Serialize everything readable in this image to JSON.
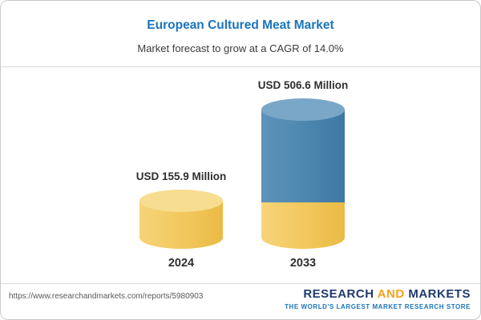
{
  "chart_data": {
    "type": "bar",
    "style": "3d-cylinder",
    "title": "European Cultured Meat Market",
    "subtitle": "Market forecast to grow at a CAGR of 14.0%",
    "categories": [
      "2024",
      "2033"
    ],
    "values": [
      155.9,
      506.6
    ],
    "unit": "USD Million",
    "value_labels": [
      "USD 155.9 Million",
      "USD 506.6 Million"
    ],
    "cagr_percent": 14.0,
    "legend": "none",
    "colors": {
      "title": "#1B75BC",
      "bar_2024": "#F2C75C",
      "bar_2033": "#4C86AF",
      "bar_2033_base": "#F2C75C"
    }
  },
  "footer": {
    "source_url": "https://www.researchandmarkets.com/reports/5980903",
    "logo": {
      "word_research": "RESEARCH",
      "word_and": "AND",
      "word_markets": "MARKETS",
      "tagline": "THE WORLD'S LARGEST MARKET RESEARCH STORE"
    }
  }
}
